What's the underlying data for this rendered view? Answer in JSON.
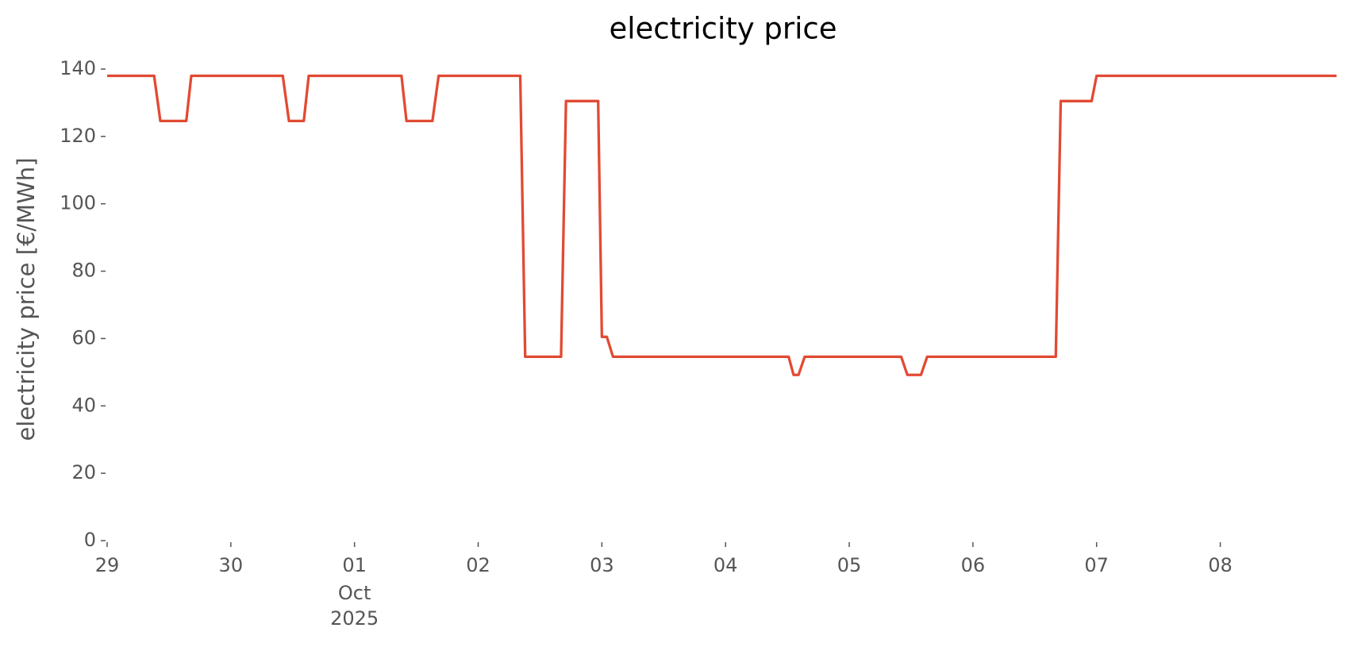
{
  "chart_data": {
    "type": "line",
    "title": "electricity price",
    "ylabel": "electricity price [€/MWh]",
    "x": [
      0,
      0.38,
      0.43,
      0.64,
      0.68,
      1.42,
      1.47,
      1.59,
      1.63,
      2.38,
      2.42,
      2.63,
      2.68,
      3.34,
      3.38,
      3.67,
      3.71,
      3.97,
      4.0,
      4.04,
      4.09,
      5.51,
      5.55,
      5.59,
      5.64,
      6.42,
      6.47,
      6.58,
      6.63,
      7.67,
      7.71,
      7.96,
      8.0,
      9.94
    ],
    "series": [
      {
        "name": "electricity price",
        "color": "#e24a33",
        "values": [
          138,
          138,
          124.6,
          124.6,
          138,
          138,
          124.6,
          124.6,
          138,
          138,
          124.6,
          124.6,
          138,
          138,
          54.6,
          54.6,
          130.5,
          130.5,
          60.5,
          60.5,
          54.6,
          54.6,
          49.2,
          49.2,
          54.6,
          54.6,
          49.2,
          49.2,
          54.6,
          54.6,
          130.5,
          130.5,
          138,
          138
        ]
      }
    ],
    "xlim": [
      0,
      9.94
    ],
    "xticks": [
      {
        "value": 0,
        "label": "29"
      },
      {
        "value": 1,
        "label": "30"
      },
      {
        "value": 2,
        "label": "01"
      },
      {
        "value": 3,
        "label": "02"
      },
      {
        "value": 4,
        "label": "03"
      },
      {
        "value": 5,
        "label": "04"
      },
      {
        "value": 6,
        "label": "05"
      },
      {
        "value": 7,
        "label": "06"
      },
      {
        "value": 8,
        "label": "07"
      },
      {
        "value": 9,
        "label": "08"
      }
    ],
    "xtick_sublabels": [
      "Oct",
      "2025"
    ],
    "ylim": [
      0,
      140
    ],
    "yticks": [
      0,
      20,
      40,
      60,
      80,
      100,
      120,
      140
    ],
    "grid": false
  }
}
